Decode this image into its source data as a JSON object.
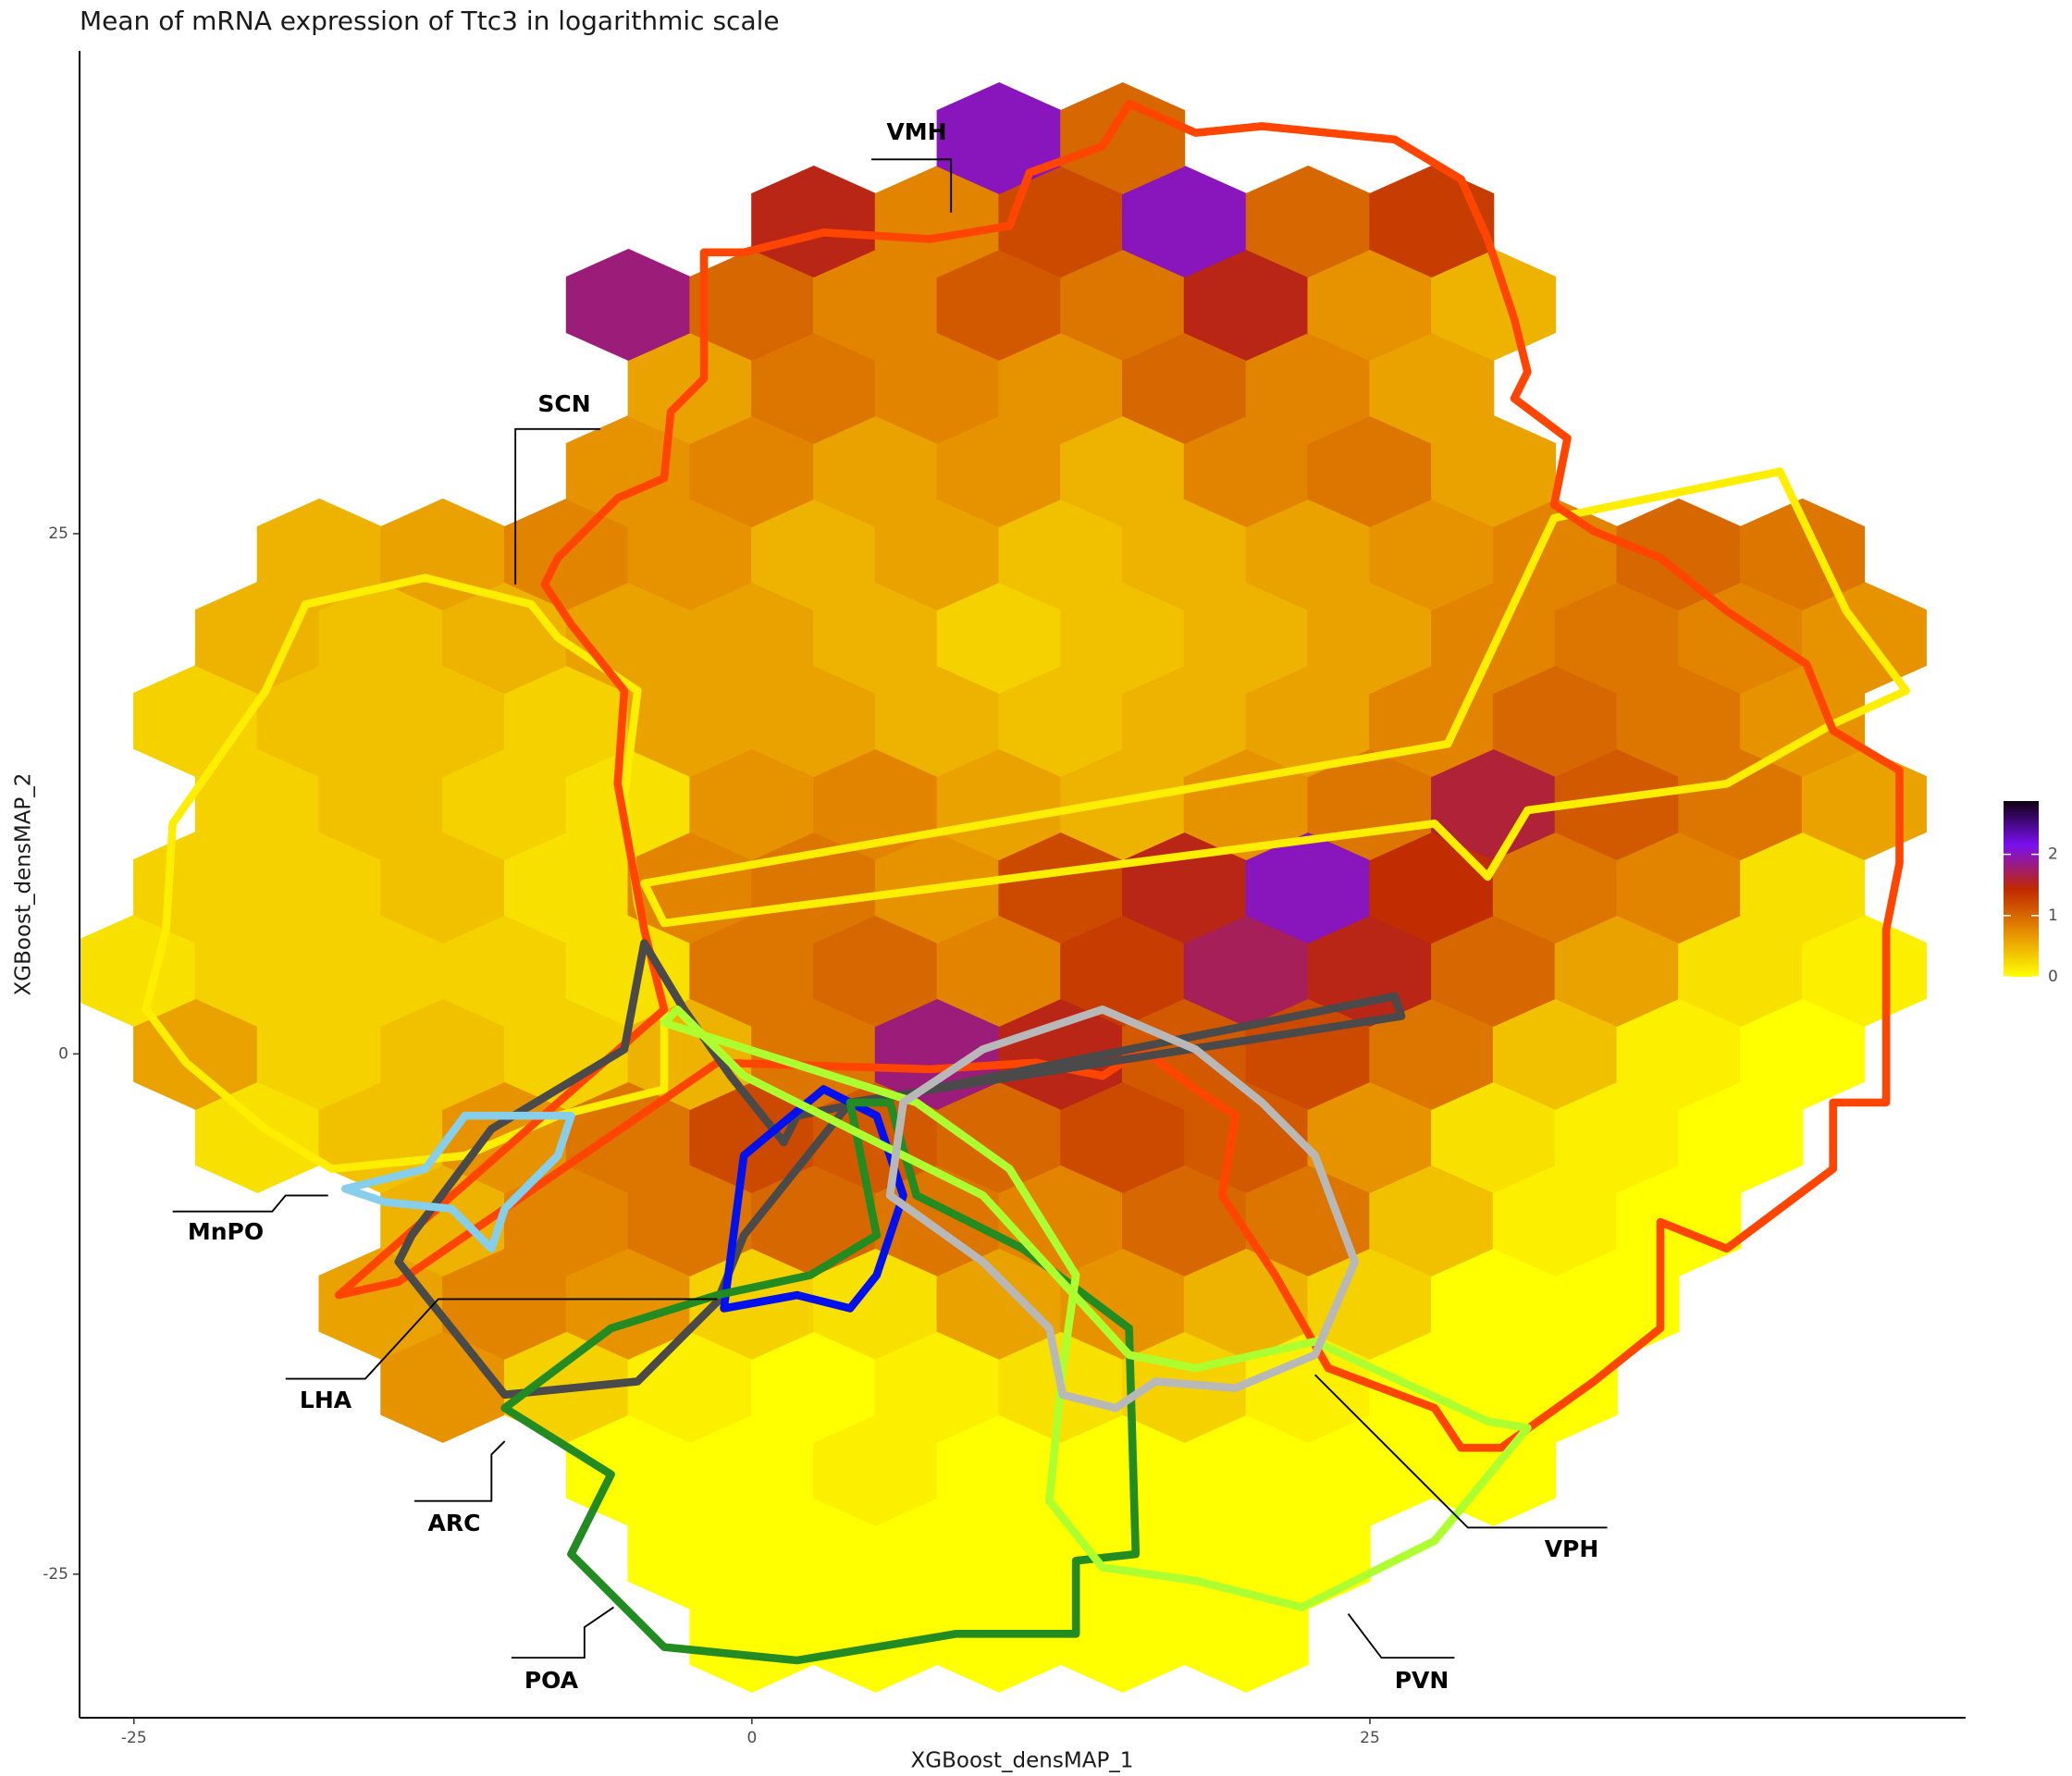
{
  "chart_data": {
    "type": "hexbin",
    "title": "Mean of mRNA expression of Ttc3 in logarithmic scale",
    "x_label": "XGBoost_densMAP_1",
    "y_label": "XGBoost_densMAP_2",
    "xlim": [
      -27.2,
      49.1
    ],
    "ylim": [
      -31.9,
      48.2
    ],
    "xticks": [
      -25,
      0,
      25
    ],
    "yticks": [
      -25,
      0,
      25
    ],
    "x": [
      0,
      5,
      10,
      15,
      20,
      -2.5,
      2.5,
      7.5,
      12.5,
      17.5,
      22.5,
      -5,
      0,
      5,
      10,
      15,
      20,
      25,
      30,
      -12.5,
      -7.5,
      -2.5,
      2.5,
      7.5,
      12.5,
      17.5,
      22.5,
      27.5,
      32.5,
      -15,
      -10,
      -5,
      0,
      5,
      10,
      15,
      20,
      25,
      30,
      35,
      -12.5,
      -7.5,
      -2.5,
      2.5,
      7.5,
      12.5,
      17.5,
      22.5,
      27.5,
      32.5,
      37.5,
      -20,
      -15,
      -10,
      -5,
      0,
      5,
      10,
      15,
      20,
      25,
      30,
      35,
      40,
      -22.5,
      -17.5,
      -12.5,
      -7.5,
      -2.5,
      2.5,
      7.5,
      12.5,
      17.5,
      22.5,
      27.5,
      32.5,
      37.5,
      42.5,
      -25,
      -20,
      -15,
      -10,
      -5,
      0,
      5,
      10,
      15,
      20,
      25,
      30,
      35,
      40,
      45,
      -22.5,
      -17.5,
      -12.5,
      -7.5,
      -2.5,
      2.5,
      7.5,
      12.5,
      17.5,
      22.5,
      27.5,
      32.5,
      37.5,
      42.5,
      -20,
      -15,
      -10,
      -5,
      0,
      5,
      10,
      15,
      20,
      25,
      30,
      35,
      40,
      45,
      -22.5,
      -17.5,
      -12.5,
      -7.5,
      -2.5,
      2.5,
      7.5,
      12.5,
      17.5,
      22.5,
      27.5,
      32.5,
      37.5,
      42.5,
      -20,
      -15,
      -10,
      -5,
      0,
      5,
      10,
      15,
      20,
      25,
      30,
      35,
      40,
      45,
      -17.5,
      -12.5,
      -7.5,
      -2.5,
      2.5,
      7.5,
      12.5,
      17.5,
      22.5,
      27.5,
      32.5,
      37.5,
      42.5,
      -5,
      0,
      5,
      10,
      15,
      20,
      25,
      30,
      -2.5,
      2.5,
      7.5,
      12.5,
      17.5,
      22.5,
      27.5,
      -5,
      0,
      5,
      10,
      15,
      20,
      25,
      30,
      2.5,
      7.5,
      12.5,
      17.5,
      22.5,
      27.5,
      10,
      15
    ],
    "y": [
      -28,
      -28,
      -28,
      -28,
      -28,
      -24,
      -24,
      -24,
      -24,
      -24,
      -24,
      -20,
      -20,
      -20,
      -20,
      -20,
      -20,
      -20,
      -20,
      -16,
      -16,
      -16,
      -16,
      -16,
      -16,
      -16,
      -16,
      -16,
      -16,
      -12,
      -12,
      -12,
      -12,
      -12,
      -12,
      -12,
      -12,
      -12,
      -12,
      -12,
      -8,
      -8,
      -8,
      -8,
      -8,
      -8,
      -8,
      -8,
      -8,
      -8,
      -8,
      -4,
      -4,
      -4,
      -4,
      -4,
      -4,
      -4,
      -4,
      -4,
      -4,
      -4,
      -4,
      -4,
      0,
      0,
      0,
      0,
      0,
      0,
      0,
      0,
      0,
      0,
      0,
      0,
      0,
      0,
      4,
      4,
      4,
      4,
      4,
      4,
      4,
      4,
      4,
      4,
      4,
      4,
      4,
      4,
      4,
      8,
      8,
      8,
      8,
      8,
      8,
      8,
      8,
      8,
      8,
      8,
      8,
      8,
      8,
      12,
      12,
      12,
      12,
      12,
      12,
      12,
      12,
      12,
      12,
      12,
      12,
      12,
      12,
      16,
      16,
      16,
      16,
      16,
      16,
      16,
      16,
      16,
      16,
      16,
      16,
      16,
      16,
      20,
      20,
      20,
      20,
      20,
      20,
      20,
      20,
      20,
      20,
      20,
      20,
      20,
      20,
      24,
      24,
      24,
      24,
      24,
      24,
      24,
      24,
      24,
      24,
      24,
      24,
      24,
      28,
      28,
      28,
      28,
      28,
      28,
      28,
      28,
      32,
      32,
      32,
      32,
      32,
      32,
      32,
      36,
      36,
      36,
      36,
      36,
      36,
      36,
      36,
      40,
      40,
      40,
      40,
      40,
      40,
      44,
      44
    ],
    "values": [
      0,
      0,
      0,
      0,
      0,
      0,
      0,
      0,
      0,
      0,
      0,
      0,
      0,
      0.1,
      0,
      0,
      0,
      0,
      0,
      0.7,
      0.3,
      0.1,
      0,
      0.1,
      0.2,
      0.3,
      0.1,
      0,
      0,
      0.6,
      0.8,
      0.7,
      0.3,
      0.2,
      0.6,
      0.7,
      0.5,
      0.3,
      0,
      0,
      0.5,
      0.8,
      0.9,
      1,
      0.9,
      0.8,
      1,
      0.9,
      0.4,
      0.1,
      0,
      0.2,
      0.4,
      0.7,
      0.9,
      1.2,
      1.1,
      1,
      1.2,
      1.1,
      0.7,
      0.2,
      0.1,
      0,
      0.6,
      0.3,
      0.4,
      0.3,
      0.5,
      0.9,
      1.8,
      1.5,
      1.1,
      1.2,
      0.9,
      0.4,
      0.1,
      0,
      0.2,
      0.3,
      0.3,
      0.3,
      0.2,
      0.9,
      1,
      0.8,
      1.3,
      1.7,
      1.5,
      1,
      0.6,
      0.2,
      0.1,
      0.3,
      0.3,
      0.4,
      0.2,
      0.8,
      0.9,
      0.7,
      1.2,
      1.5,
      2,
      1.4,
      0.9,
      0.8,
      0.2,
      0.3,
      0.4,
      0.3,
      0.2,
      0.7,
      0.8,
      0.6,
      0.5,
      0.7,
      0.9,
      1.6,
      1.1,
      0.9,
      0.6,
      0.3,
      0.4,
      0.4,
      0.3,
      0.6,
      0.6,
      0.5,
      0.4,
      0.5,
      0.6,
      0.8,
      1,
      0.9,
      0.7,
      0.5,
      0.4,
      0.5,
      0.6,
      0.6,
      0.5,
      0.3,
      0.4,
      0.5,
      0.6,
      0.8,
      0.9,
      0.8,
      0.7,
      0.5,
      0.6,
      0.8,
      0.7,
      0.5,
      0.6,
      0.4,
      0.5,
      0.6,
      0.7,
      0.8,
      1,
      0.9,
      0.7,
      0.8,
      0.6,
      0.7,
      0.5,
      0.8,
      0.9,
      0.6,
      0.6,
      0.9,
      0.8,
      0.7,
      1,
      0.8,
      0.6,
      1.8,
      1,
      0.8,
      1.1,
      0.9,
      1.5,
      0.7,
      0.5,
      1.5,
      0.8,
      1.2,
      2,
      1,
      1.3,
      2,
      1
    ],
    "colorbar": {
      "clim": [
        0,
        2.87
      ],
      "ticks": [
        0,
        1,
        2
      ],
      "colors": [
        "#ffff00",
        "#e69000",
        "#c02800",
        "#7a10f0",
        "#100010"
      ]
    },
    "annotations": [
      "VMH",
      "SCN",
      "MnPO",
      "LHA",
      "ARC",
      "POA",
      "VPH",
      "PVN"
    ]
  }
}
